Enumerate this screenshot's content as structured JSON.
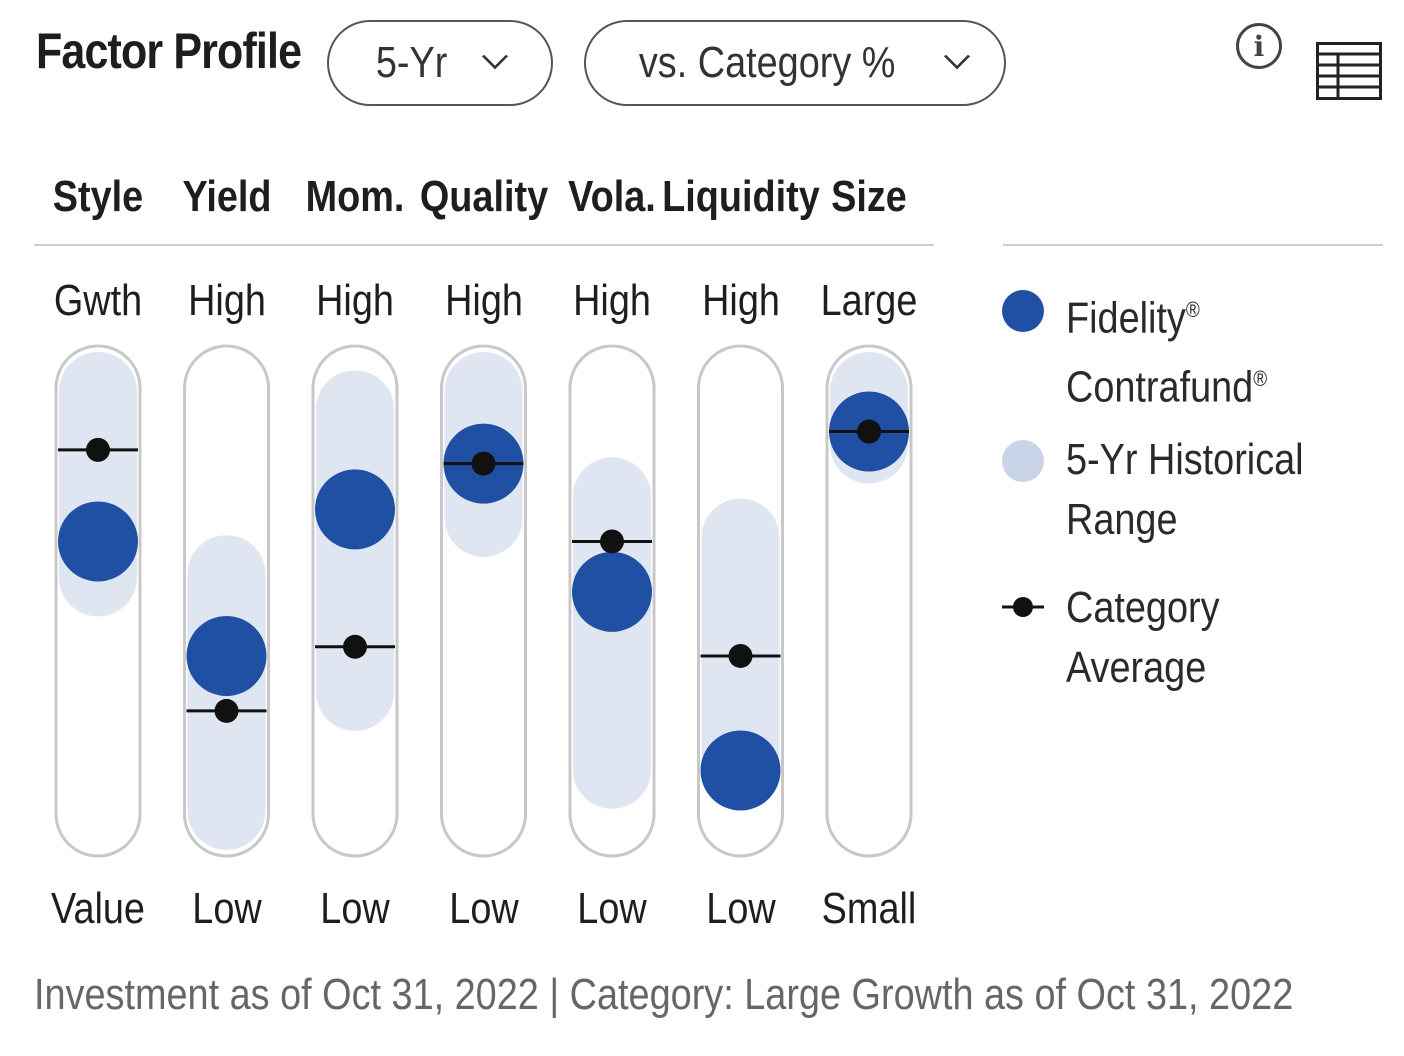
{
  "header": {
    "title": "Factor Profile",
    "period_select": {
      "value": "5-Yr",
      "chevron": "⌄"
    },
    "compare_select": {
      "value": "vs. Category %",
      "chevron": "⌄"
    },
    "info_icon": "info-icon",
    "table_icon": "table-view-icon"
  },
  "colors": {
    "fund": "#2050a3",
    "range": "#dfe6f1",
    "track_border": "#c8c8c8",
    "category_line": "#111111",
    "divider": "#cfcfcf"
  },
  "chart_data": {
    "type": "dot-range",
    "scale": "category percentile",
    "ylim": [
      0,
      100
    ],
    "factors": [
      {
        "name": "Style",
        "top_label": "Gwth",
        "bottom_label": "Value",
        "fund": 63,
        "category": 83,
        "range": [
          51,
          100
        ]
      },
      {
        "name": "Yield",
        "top_label": "High",
        "bottom_label": "Low",
        "fund": 38,
        "category": 26,
        "range": [
          0,
          60
        ]
      },
      {
        "name": "Mom.",
        "top_label": "High",
        "bottom_label": "Low",
        "fund": 70,
        "category": 40,
        "range": [
          26,
          96
        ]
      },
      {
        "name": "Quality",
        "top_label": "High",
        "bottom_label": "Low",
        "fund": 80,
        "category": 80,
        "range": [
          64,
          100
        ]
      },
      {
        "name": "Vola.",
        "top_label": "High",
        "bottom_label": "Low",
        "fund": 52,
        "category": 63,
        "range": [
          9,
          77
        ]
      },
      {
        "name": "Liquidity",
        "top_label": "High",
        "bottom_label": "Low",
        "fund": 13,
        "category": 38,
        "range": [
          10,
          68
        ]
      },
      {
        "name": "Size",
        "top_label": "Large",
        "bottom_label": "Small",
        "fund": 87,
        "category": 87,
        "range": [
          80,
          100
        ]
      }
    ]
  },
  "legend": {
    "fund_line1": "Fidelity",
    "fund_line2": "Contrafund",
    "fund_mark": "®",
    "range_line1": "5-Yr Historical",
    "range_line2": "Range",
    "category_line1": "Category",
    "category_line2": "Average"
  },
  "footer": "Investment as of Oct 31, 2022 | Category: Large Growth as of Oct 31, 2022"
}
